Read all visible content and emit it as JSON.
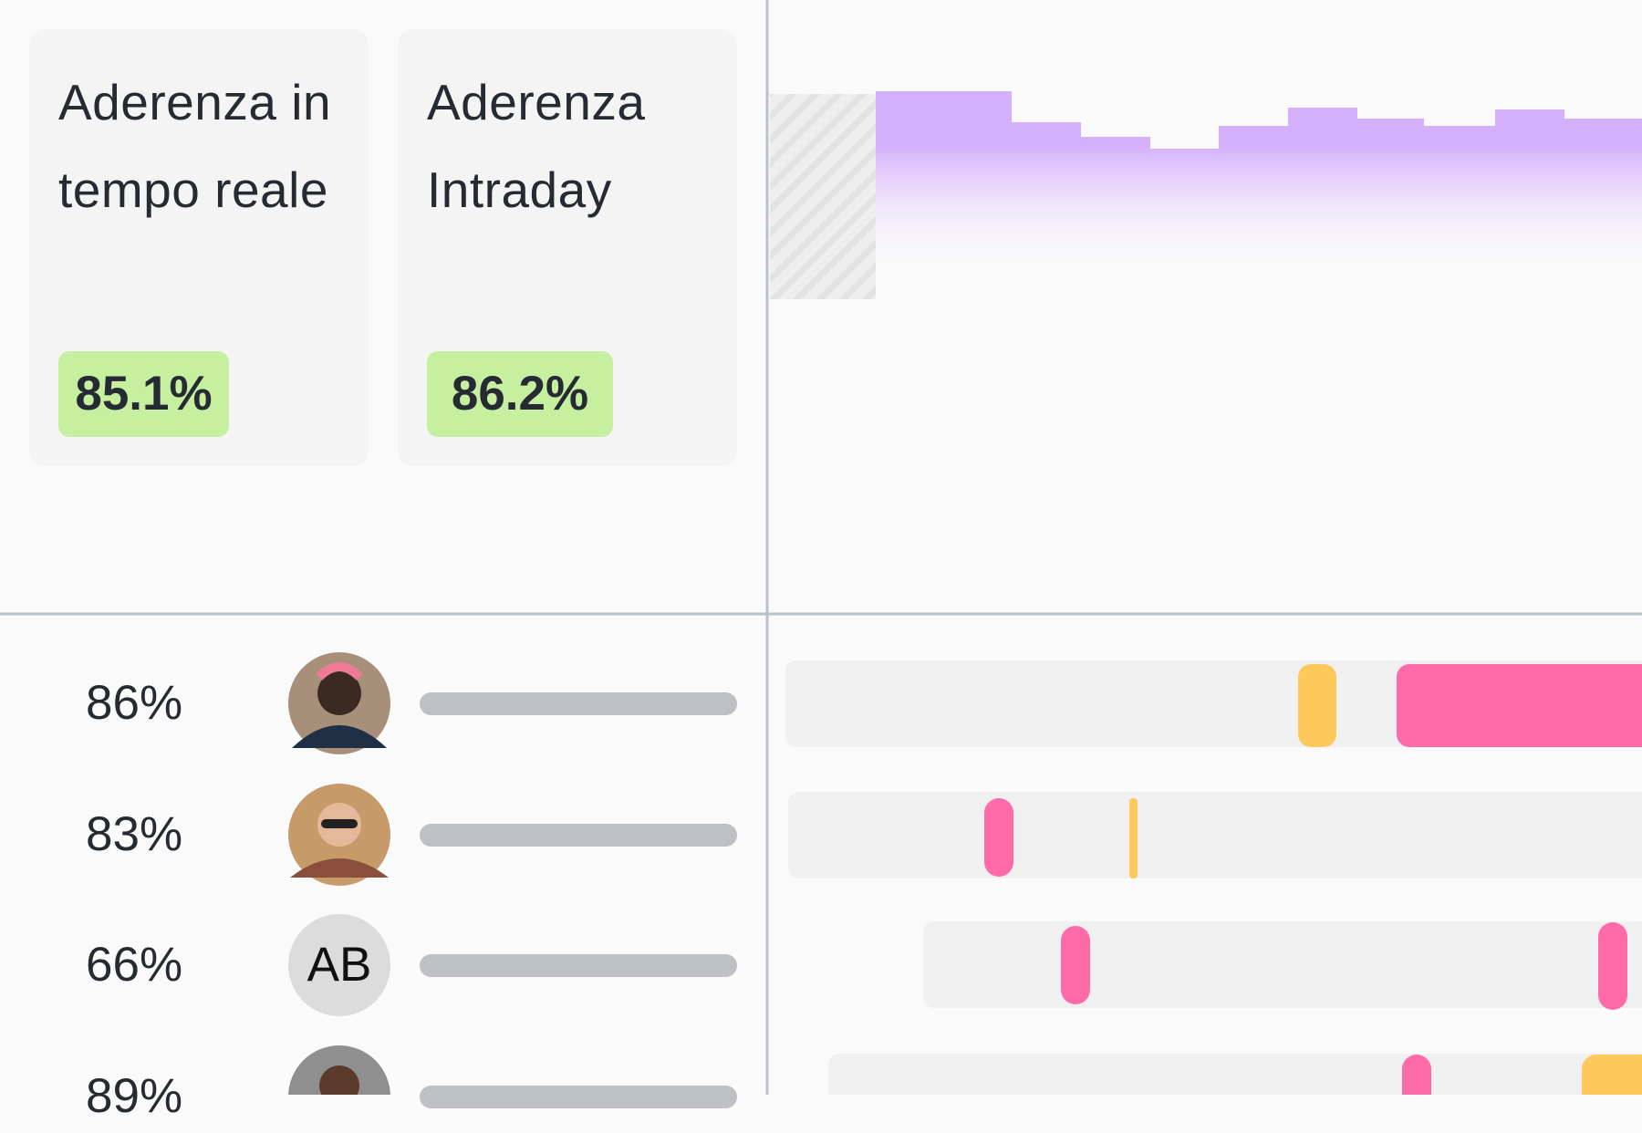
{
  "cards": [
    {
      "title": "Aderenza in tempo reale",
      "value": "85.1%"
    },
    {
      "title": "Aderenza Intraday",
      "value": "86.2%"
    }
  ],
  "agents": [
    {
      "score": "86%"
    },
    {
      "score": "83%"
    },
    {
      "score": "66%",
      "initials": "AB"
    },
    {
      "score": "89%"
    }
  ]
}
